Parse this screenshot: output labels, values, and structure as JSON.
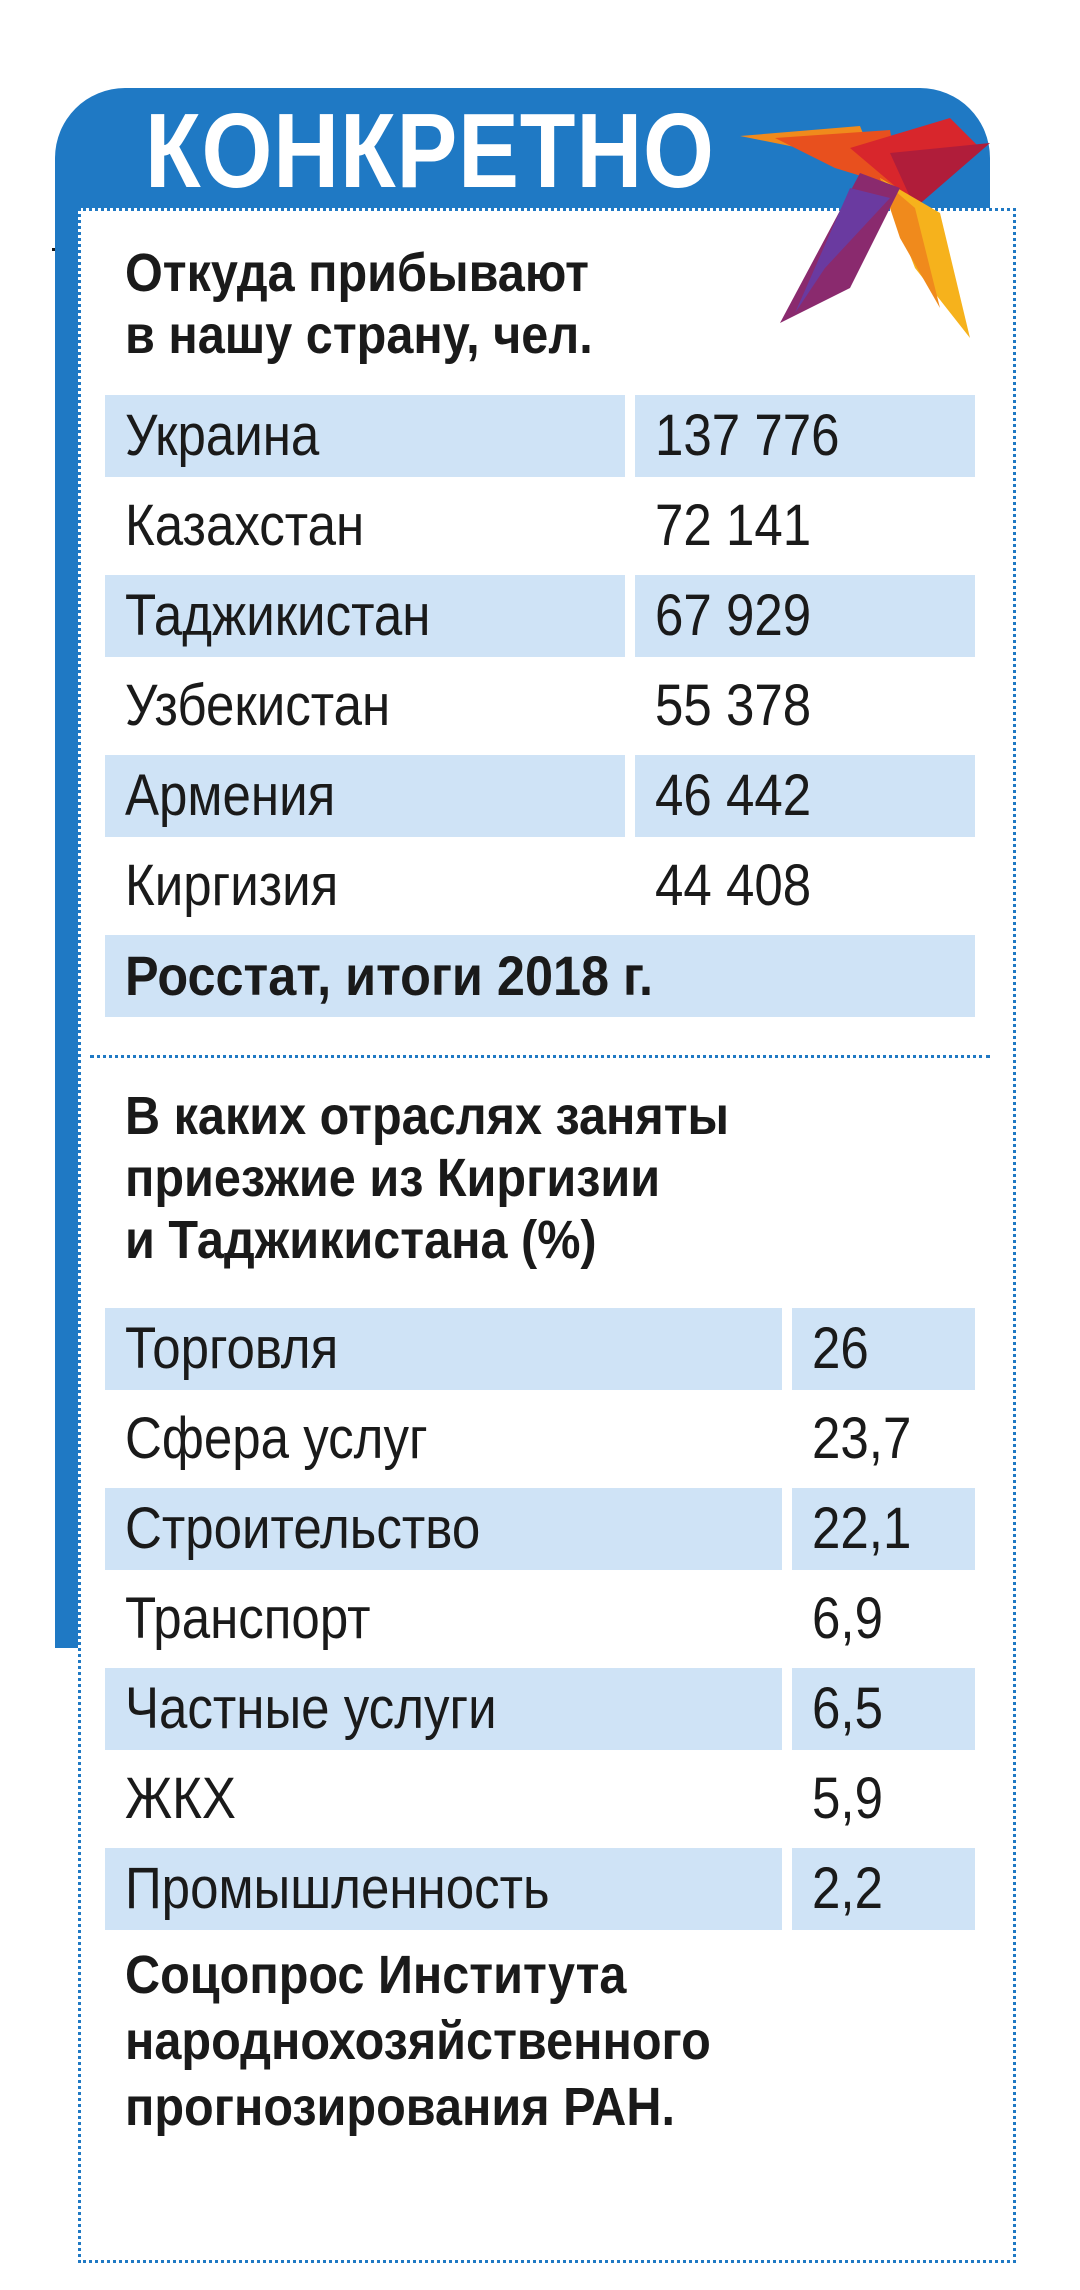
{
  "header": {
    "title": "КОНКРЕТНО"
  },
  "colors": {
    "accent_blue": "#1f79c4",
    "row_shade": "#cfe3f6"
  },
  "logo": {
    "icon": "bird-logo-icon"
  },
  "section1": {
    "heading_lines": [
      "Откуда прибывают",
      "в нашу страну, чел."
    ],
    "rows": [
      {
        "country": "Украина",
        "value": "137 776"
      },
      {
        "country": "Казахстан",
        "value": "72 141"
      },
      {
        "country": "Таджикистан",
        "value": "67 929"
      },
      {
        "country": "Узбекистан",
        "value": "55 378"
      },
      {
        "country": "Армения",
        "value": "46 442"
      },
      {
        "country": "Киргизия",
        "value": "44 408"
      }
    ],
    "source": "Росстат, итоги 2018 г."
  },
  "section2": {
    "heading_lines": [
      "В каких отраслях заняты",
      "приезжие из Киргизии",
      "и Таджикистана  (%)"
    ],
    "rows": [
      {
        "sector": "Торговля",
        "value": "26"
      },
      {
        "sector": "Сфера услуг",
        "value": "23,7"
      },
      {
        "sector": "Строительство",
        "value": "22,1"
      },
      {
        "sector": "Транспорт",
        "value": "6,9"
      },
      {
        "sector": "Частные услуги",
        "value": "6,5"
      },
      {
        "sector": "ЖКХ",
        "value": "5,9"
      },
      {
        "sector": "Промышленность",
        "value": "2,2"
      }
    ],
    "source_lines": [
      "Соцопрос Института",
      "народнохозяйственного",
      "прогнозирования РАН."
    ]
  }
}
